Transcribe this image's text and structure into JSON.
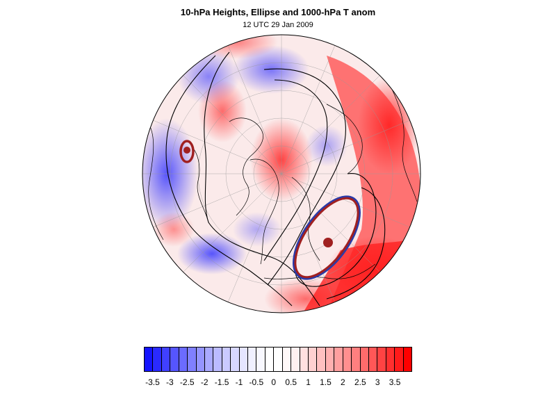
{
  "title": "10-hPa Heights, Ellipse and 1000-hPa T anom",
  "subtitle": "12 UTC 29 Jan 2009",
  "colorbar": {
    "labels": [
      "-3.5",
      "-3",
      "-2.5",
      "-2",
      "-1.5",
      "-1",
      "-0.5",
      "0",
      "0.5",
      "1",
      "1.5",
      "2",
      "2.5",
      "3",
      "3.5"
    ],
    "levels": [
      -3.75,
      -3.5,
      -3.25,
      -3,
      -2.75,
      -2.5,
      -2.25,
      -2,
      -1.75,
      -1.5,
      -1.25,
      -1,
      -0.75,
      -0.5,
      -0.25,
      0,
      0.25,
      0.5,
      0.75,
      1,
      1.25,
      1.5,
      1.75,
      2,
      2.25,
      2.5,
      2.75,
      3,
      3.25,
      3.5,
      3.75
    ],
    "colors": [
      "#1414ff",
      "#2a2aff",
      "#4040ff",
      "#5555ff",
      "#6b6bff",
      "#8080ff",
      "#9595ff",
      "#aaaaff",
      "#bbbbff",
      "#cacaff",
      "#d8d8ff",
      "#e5e5ff",
      "#f0f0ff",
      "#f8f8ff",
      "#ffffff",
      "#ffffff",
      "#fff8f8",
      "#fff0f0",
      "#ffe0e0",
      "#ffd0d0",
      "#ffc0c0",
      "#ffb0b0",
      "#ff9f9f",
      "#ff8f8f",
      "#ff7f7f",
      "#ff6b6b",
      "#ff5757",
      "#ff4343",
      "#ff2f2f",
      "#ff1a1a",
      "#ff0000"
    ]
  },
  "map": {
    "projection": "orthographic-polar",
    "colors": {
      "warm": "#ff2a2a",
      "cold": "#3a3aff",
      "height_contour": "#000000",
      "ellipse_red": "#a02020",
      "ellipse_blue": "#2a3aa8"
    }
  }
}
